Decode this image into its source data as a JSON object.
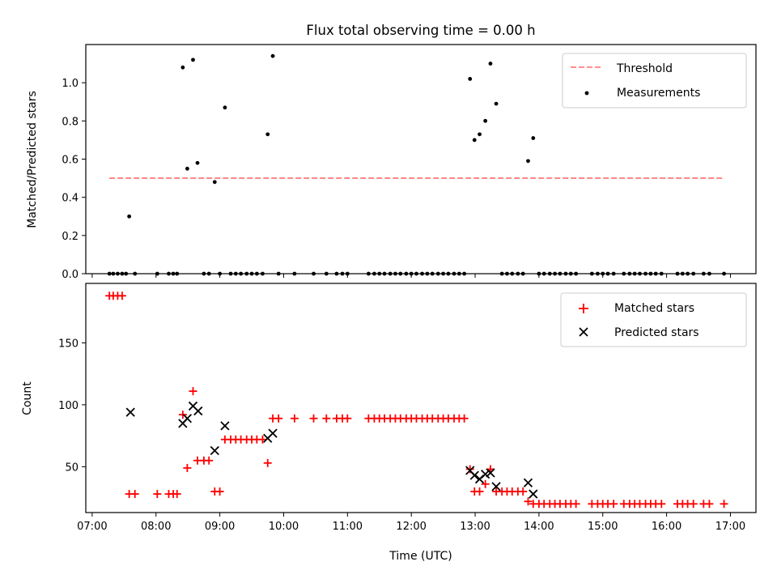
{
  "chart_data": [
    {
      "type": "scatter",
      "title": "Flux total observing time = 0.00 h",
      "xlabel": "",
      "ylabel": "Matched/Predicted stars",
      "xlim": [
        6.9,
        17.4
      ],
      "ylim": [
        0.0,
        1.2
      ],
      "xticks": [
        7,
        8,
        9,
        10,
        11,
        12,
        13,
        14,
        15,
        16,
        17
      ],
      "yticks": [
        0.0,
        0.2,
        0.4,
        0.6,
        0.8,
        1.0
      ],
      "ytick_labels": [
        "0.0",
        "0.2",
        "0.4",
        "0.6",
        "0.8",
        "1.0"
      ],
      "legend": {
        "position": "top-right",
        "entries": [
          "Threshold",
          "Measurements"
        ]
      },
      "threshold": {
        "name": "Threshold",
        "color": "#ff7f7f",
        "style": "dashed",
        "y": 0.5,
        "x": [
          7.27,
          16.9
        ]
      },
      "series": [
        {
          "name": "Measurements",
          "color": "#000000",
          "marker": "dot",
          "points": [
            [
              7.58,
              0.3
            ],
            [
              8.42,
              1.08
            ],
            [
              8.49,
              0.55
            ],
            [
              8.58,
              1.12
            ],
            [
              8.65,
              0.58
            ],
            [
              8.92,
              0.48
            ],
            [
              9.08,
              0.87
            ],
            [
              9.75,
              0.73
            ],
            [
              9.83,
              1.14
            ],
            [
              12.92,
              1.02
            ],
            [
              12.99,
              0.7
            ],
            [
              13.07,
              0.73
            ],
            [
              13.16,
              0.8
            ],
            [
              13.24,
              1.1
            ],
            [
              13.33,
              0.89
            ],
            [
              13.83,
              0.59
            ],
            [
              13.91,
              0.71
            ],
            [
              7.27,
              0
            ],
            [
              7.33,
              0
            ],
            [
              7.4,
              0
            ],
            [
              7.47,
              0
            ],
            [
              7.53,
              0
            ],
            [
              7.67,
              0
            ],
            [
              8.02,
              0
            ],
            [
              8.2,
              0
            ],
            [
              8.27,
              0
            ],
            [
              8.33,
              0
            ],
            [
              8.75,
              0
            ],
            [
              8.83,
              0
            ],
            [
              9.0,
              0
            ],
            [
              9.17,
              0
            ],
            [
              9.25,
              0
            ],
            [
              9.33,
              0
            ],
            [
              9.42,
              0
            ],
            [
              9.5,
              0
            ],
            [
              9.58,
              0
            ],
            [
              9.67,
              0
            ],
            [
              9.92,
              0
            ],
            [
              10.17,
              0
            ],
            [
              10.47,
              0
            ],
            [
              10.67,
              0
            ],
            [
              10.83,
              0
            ],
            [
              10.92,
              0
            ],
            [
              11.0,
              0
            ],
            [
              11.33,
              0
            ],
            [
              11.42,
              0
            ],
            [
              11.5,
              0
            ],
            [
              11.58,
              0
            ],
            [
              11.67,
              0
            ],
            [
              11.75,
              0
            ],
            [
              11.83,
              0
            ],
            [
              11.92,
              0
            ],
            [
              12.0,
              0
            ],
            [
              12.08,
              0
            ],
            [
              12.17,
              0
            ],
            [
              12.25,
              0
            ],
            [
              12.33,
              0
            ],
            [
              12.42,
              0
            ],
            [
              12.5,
              0
            ],
            [
              12.58,
              0
            ],
            [
              12.67,
              0
            ],
            [
              12.75,
              0
            ],
            [
              12.83,
              0
            ],
            [
              13.42,
              0
            ],
            [
              13.5,
              0
            ],
            [
              13.58,
              0
            ],
            [
              13.67,
              0
            ],
            [
              13.75,
              0
            ],
            [
              14.0,
              0
            ],
            [
              14.08,
              0
            ],
            [
              14.17,
              0
            ],
            [
              14.25,
              0
            ],
            [
              14.33,
              0
            ],
            [
              14.42,
              0
            ],
            [
              14.5,
              0
            ],
            [
              14.58,
              0
            ],
            [
              14.83,
              0
            ],
            [
              14.92,
              0
            ],
            [
              15.0,
              0
            ],
            [
              15.08,
              0
            ],
            [
              15.17,
              0
            ],
            [
              15.33,
              0
            ],
            [
              15.42,
              0
            ],
            [
              15.5,
              0
            ],
            [
              15.58,
              0
            ],
            [
              15.67,
              0
            ],
            [
              15.75,
              0
            ],
            [
              15.83,
              0
            ],
            [
              15.92,
              0
            ],
            [
              16.17,
              0
            ],
            [
              16.25,
              0
            ],
            [
              16.33,
              0
            ],
            [
              16.42,
              0
            ],
            [
              16.58,
              0
            ],
            [
              16.67,
              0
            ],
            [
              16.9,
              0
            ]
          ]
        }
      ]
    },
    {
      "type": "scatter",
      "title": "",
      "xlabel": "Time (UTC)",
      "ylabel": "Count",
      "xlim": [
        6.9,
        17.4
      ],
      "ylim": [
        13,
        198
      ],
      "xticks": [
        7,
        8,
        9,
        10,
        11,
        12,
        13,
        14,
        15,
        16,
        17
      ],
      "xtick_labels": [
        "07:00",
        "08:00",
        "09:00",
        "10:00",
        "11:00",
        "12:00",
        "13:00",
        "14:00",
        "15:00",
        "16:00",
        "17:00"
      ],
      "yticks": [
        50,
        100,
        150
      ],
      "ytick_labels": [
        "50",
        "100",
        "150"
      ],
      "legend": {
        "position": "top-right",
        "entries": [
          "Matched stars",
          "Predicted stars"
        ]
      },
      "series": [
        {
          "name": "Matched stars",
          "color": "#ff0000",
          "marker": "plus",
          "points": [
            [
              7.27,
              188
            ],
            [
              7.33,
              188
            ],
            [
              7.4,
              188
            ],
            [
              7.47,
              188
            ],
            [
              7.58,
              28
            ],
            [
              7.67,
              28
            ],
            [
              8.02,
              28
            ],
            [
              8.2,
              28
            ],
            [
              8.27,
              28
            ],
            [
              8.33,
              28
            ],
            [
              8.42,
              92
            ],
            [
              8.49,
              49
            ],
            [
              8.58,
              111
            ],
            [
              8.65,
              55
            ],
            [
              8.75,
              55
            ],
            [
              8.83,
              55
            ],
            [
              8.92,
              30
            ],
            [
              9.0,
              30
            ],
            [
              9.08,
              72
            ],
            [
              9.17,
              72
            ],
            [
              9.25,
              72
            ],
            [
              9.33,
              72
            ],
            [
              9.42,
              72
            ],
            [
              9.5,
              72
            ],
            [
              9.58,
              72
            ],
            [
              9.67,
              72
            ],
            [
              9.75,
              53
            ],
            [
              9.83,
              89
            ],
            [
              9.92,
              89
            ],
            [
              10.17,
              89
            ],
            [
              10.47,
              89
            ],
            [
              10.67,
              89
            ],
            [
              10.83,
              89
            ],
            [
              10.92,
              89
            ],
            [
              11.0,
              89
            ],
            [
              11.33,
              89
            ],
            [
              11.42,
              89
            ],
            [
              11.5,
              89
            ],
            [
              11.58,
              89
            ],
            [
              11.67,
              89
            ],
            [
              11.75,
              89
            ],
            [
              11.83,
              89
            ],
            [
              11.92,
              89
            ],
            [
              12.0,
              89
            ],
            [
              12.08,
              89
            ],
            [
              12.17,
              89
            ],
            [
              12.25,
              89
            ],
            [
              12.33,
              89
            ],
            [
              12.42,
              89
            ],
            [
              12.5,
              89
            ],
            [
              12.58,
              89
            ],
            [
              12.67,
              89
            ],
            [
              12.75,
              89
            ],
            [
              12.83,
              89
            ],
            [
              12.92,
              48
            ],
            [
              12.99,
              30
            ],
            [
              13.07,
              30
            ],
            [
              13.16,
              36
            ],
            [
              13.24,
              48
            ],
            [
              13.33,
              30
            ],
            [
              13.42,
              30
            ],
            [
              13.5,
              30
            ],
            [
              13.58,
              30
            ],
            [
              13.67,
              30
            ],
            [
              13.75,
              30
            ],
            [
              13.83,
              22
            ],
            [
              13.91,
              20
            ],
            [
              14.0,
              20
            ],
            [
              14.08,
              20
            ],
            [
              14.17,
              20
            ],
            [
              14.25,
              20
            ],
            [
              14.33,
              20
            ],
            [
              14.42,
              20
            ],
            [
              14.5,
              20
            ],
            [
              14.58,
              20
            ],
            [
              14.83,
              20
            ],
            [
              14.92,
              20
            ],
            [
              15.0,
              20
            ],
            [
              15.08,
              20
            ],
            [
              15.17,
              20
            ],
            [
              15.33,
              20
            ],
            [
              15.42,
              20
            ],
            [
              15.5,
              20
            ],
            [
              15.58,
              20
            ],
            [
              15.67,
              20
            ],
            [
              15.75,
              20
            ],
            [
              15.83,
              20
            ],
            [
              15.92,
              20
            ],
            [
              16.17,
              20
            ],
            [
              16.25,
              20
            ],
            [
              16.33,
              20
            ],
            [
              16.42,
              20
            ],
            [
              16.58,
              20
            ],
            [
              16.67,
              20
            ],
            [
              16.9,
              20
            ]
          ]
        },
        {
          "name": "Predicted stars",
          "color": "#000000",
          "marker": "x",
          "points": [
            [
              7.6,
              94
            ],
            [
              8.42,
              85
            ],
            [
              8.49,
              89
            ],
            [
              8.58,
              99
            ],
            [
              8.66,
              95
            ],
            [
              8.92,
              63
            ],
            [
              9.08,
              83
            ],
            [
              9.75,
              73
            ],
            [
              9.83,
              77
            ],
            [
              12.92,
              47
            ],
            [
              12.99,
              43
            ],
            [
              13.07,
              40
            ],
            [
              13.16,
              44
            ],
            [
              13.24,
              45
            ],
            [
              13.33,
              34
            ],
            [
              13.83,
              37
            ],
            [
              13.91,
              28
            ]
          ]
        }
      ]
    }
  ]
}
